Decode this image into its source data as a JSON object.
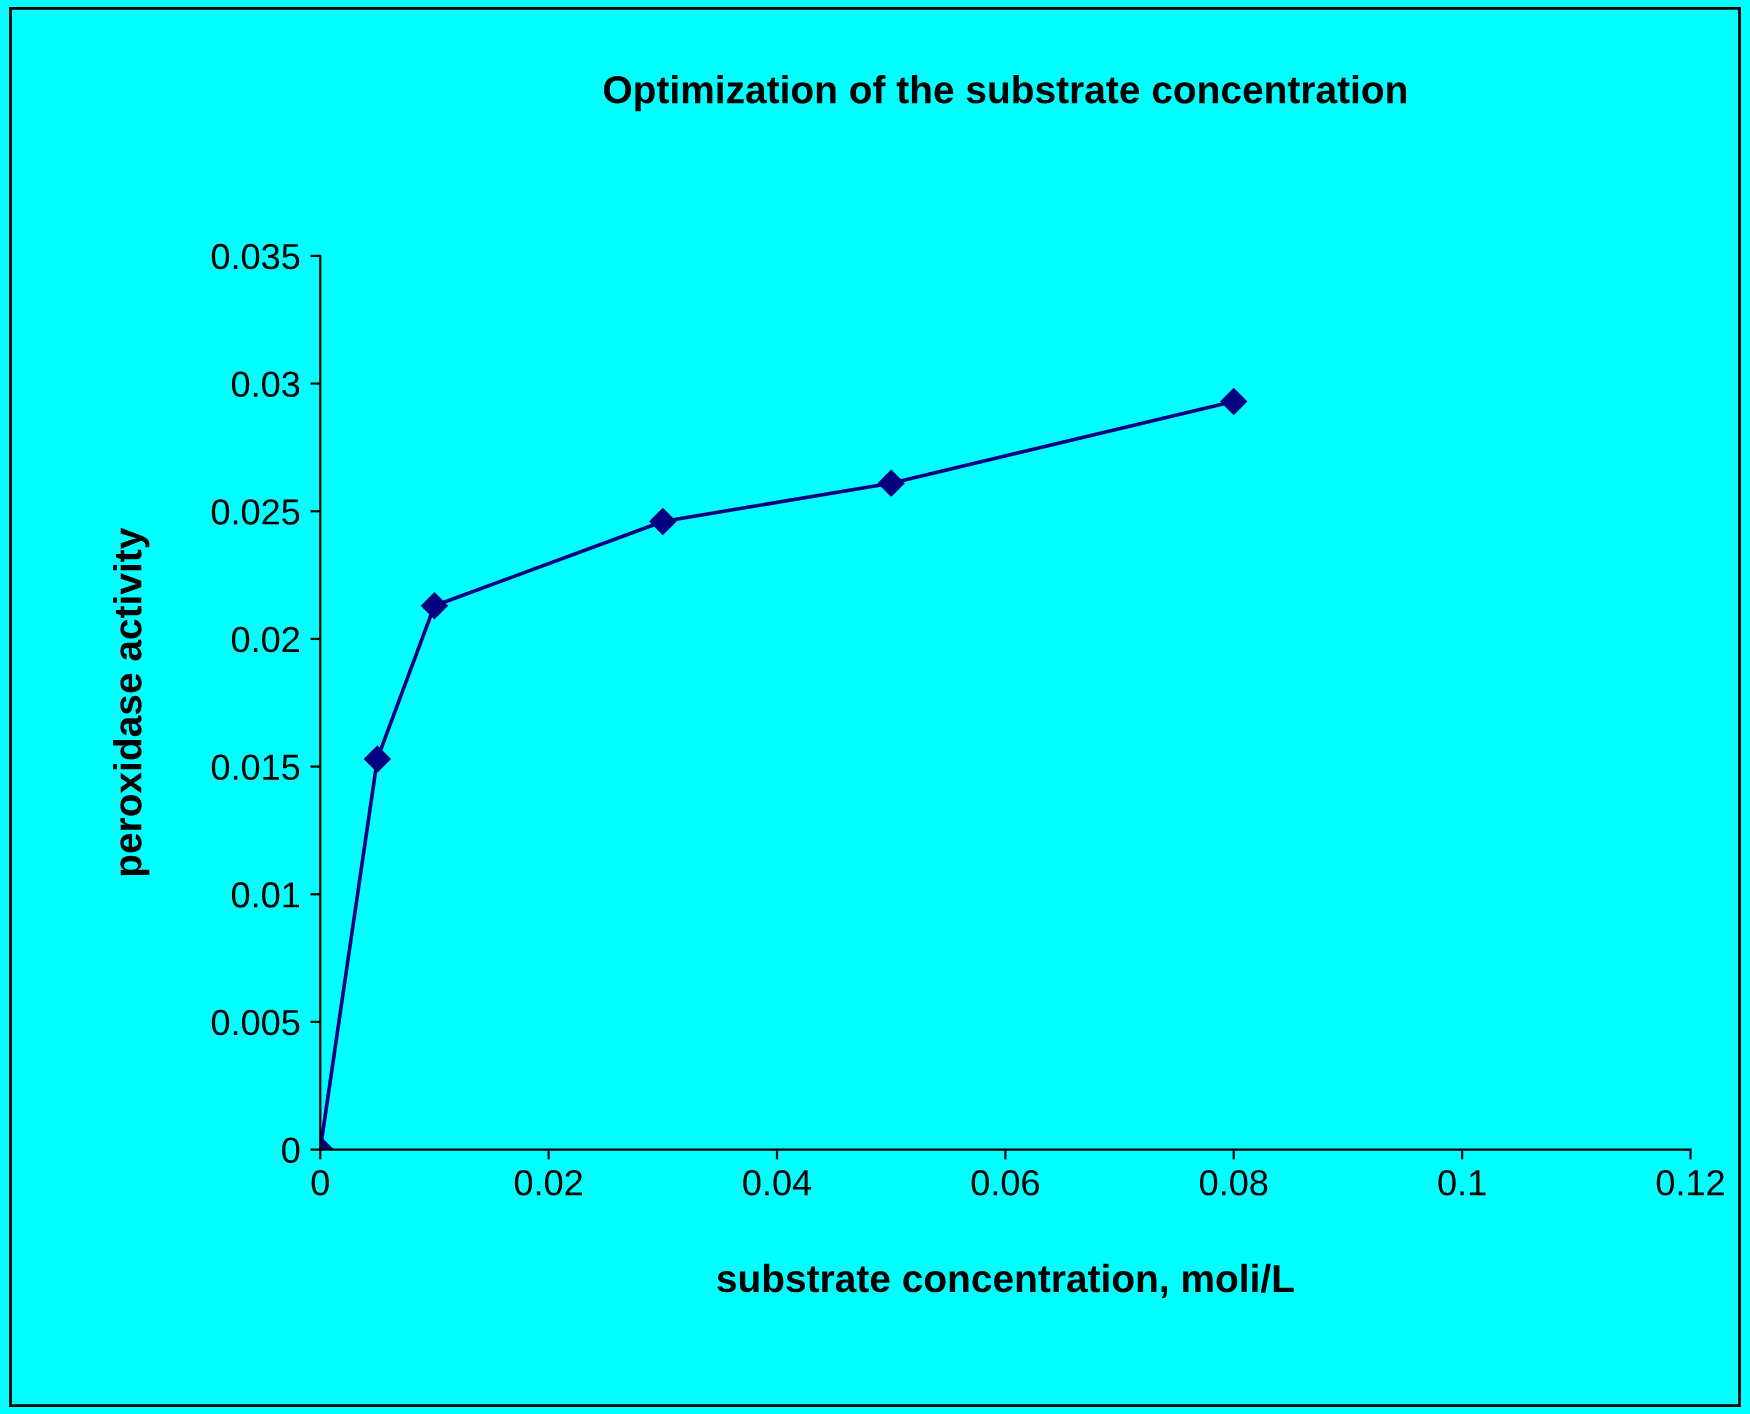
{
  "chart_data": {
    "type": "line",
    "title": "Optimization of the substrate concentration",
    "xlabel": "substrate concentration, moli/L",
    "ylabel": "peroxidase activity",
    "x": [
      0,
      0.005,
      0.01,
      0.03,
      0.05,
      0.08
    ],
    "series": [
      {
        "color": "#000080",
        "values": [
          0,
          0.0153,
          0.0213,
          0.0246,
          0.0261,
          0.0293
        ]
      }
    ],
    "xlim": [
      0,
      0.12
    ],
    "xticks": [
      0,
      0.02,
      0.04,
      0.06,
      0.08,
      0.1,
      0.12
    ],
    "ylim": [
      0,
      0.035
    ],
    "yticks": [
      0,
      0.005,
      0.01,
      0.015,
      0.02,
      0.025,
      0.03,
      0.035
    ],
    "marker": "diamond",
    "line_style": "solid",
    "grid": false,
    "legend": false
  }
}
